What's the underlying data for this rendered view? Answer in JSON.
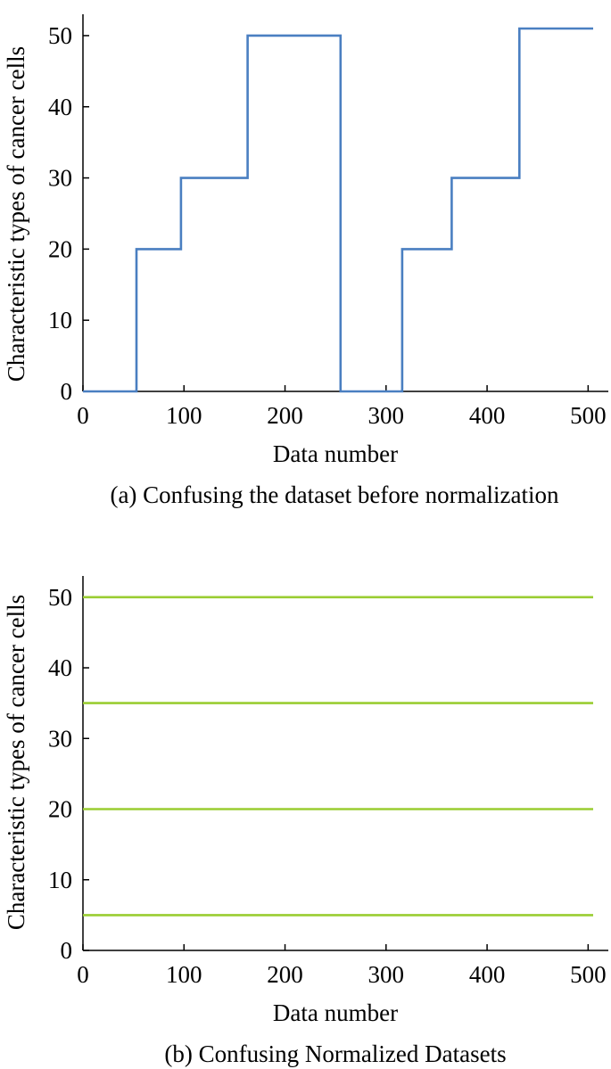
{
  "chart_data": [
    {
      "type": "line",
      "step": true,
      "caption": "(a) Confusing the dataset before normalization",
      "xlabel": "Data number",
      "ylabel": "Characteristic types of cancer cells",
      "xlim": [
        0,
        520
      ],
      "ylim": [
        0,
        53
      ],
      "xticks": [
        0,
        100,
        200,
        300,
        400,
        500
      ],
      "yticks": [
        0,
        10,
        20,
        30,
        40,
        50
      ],
      "grid": false,
      "color": "#4a7fc1",
      "series": [
        {
          "x": [
            0,
            53,
            53,
            97,
            97,
            163,
            163,
            255,
            255,
            316,
            316,
            365,
            365,
            432,
            432,
            505
          ],
          "y": [
            0,
            0,
            20,
            20,
            30,
            30,
            50,
            50,
            0,
            0,
            20,
            20,
            30,
            30,
            51,
            51
          ]
        }
      ]
    },
    {
      "type": "line",
      "caption": "(b) Confusing Normalized Datasets",
      "xlabel": "Data number",
      "ylabel": "Characteristic types of cancer cells",
      "xlim": [
        0,
        520
      ],
      "ylim": [
        0,
        53
      ],
      "xticks": [
        0,
        100,
        200,
        300,
        400,
        500
      ],
      "yticks": [
        0,
        10,
        20,
        30,
        40,
        50
      ],
      "grid": false,
      "color": "#9acd32",
      "series": [
        {
          "x": [
            0,
            505
          ],
          "y": [
            50,
            50
          ]
        },
        {
          "x": [
            0,
            505
          ],
          "y": [
            35,
            35
          ]
        },
        {
          "x": [
            0,
            505
          ],
          "y": [
            20,
            20
          ]
        },
        {
          "x": [
            0,
            505
          ],
          "y": [
            5,
            5
          ]
        }
      ]
    }
  ]
}
